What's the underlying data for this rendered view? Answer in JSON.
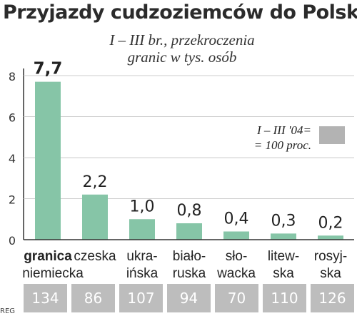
{
  "title": "Przyjazdy cudzoziemców do Polski",
  "subtitle_lines": [
    "I – III br., przekroczenia",
    "granic w tys. osób"
  ],
  "legend": {
    "lines": [
      "I – III '04=",
      "= 100 proc."
    ],
    "swatch_color": "#b3b3b3"
  },
  "credit": "REG",
  "colors": {
    "bar": "#86c5a7",
    "axis": "#333333",
    "grid": "#cccccc",
    "base_cell": "#bdbdbd"
  },
  "chart_data": {
    "type": "bar",
    "title": "Przyjazdy cudzoziemców do Polski",
    "subtitle": "I – III br., przekroczenia granic w tys. osób",
    "categories": [
      [
        "granica",
        "niemiecka"
      ],
      [
        "czeska"
      ],
      [
        "ukra-",
        "ińska"
      ],
      [
        "biało-",
        "ruska"
      ],
      [
        "sło-",
        "wacka"
      ],
      [
        "litew-",
        "ska"
      ],
      [
        "rosyj-",
        "ska"
      ]
    ],
    "values": [
      7.7,
      2.2,
      1.0,
      0.8,
      0.4,
      0.3,
      0.2
    ],
    "value_labels": [
      "7,7",
      "2,2",
      "1,0",
      "0,8",
      "0,4",
      "0,3",
      "0,2"
    ],
    "index_vs_2004": [
      "134",
      "86",
      "107",
      "94",
      "70",
      "110",
      "126"
    ],
    "yticks": [
      "0",
      "2",
      "4",
      "6",
      "8"
    ],
    "ylim": [
      0,
      8
    ],
    "grid": true,
    "legend_position": "right"
  }
}
